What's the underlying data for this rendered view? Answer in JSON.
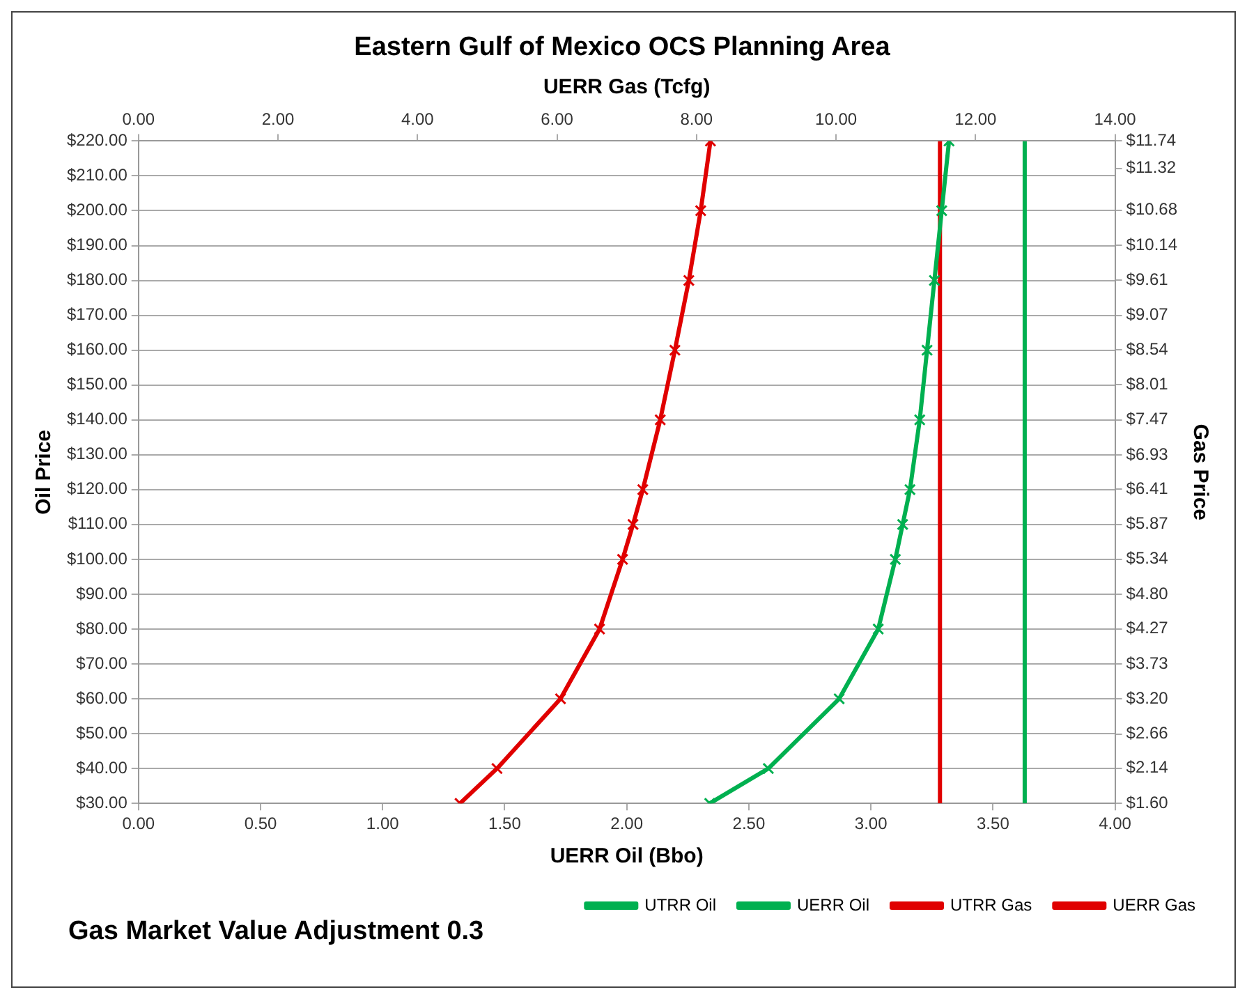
{
  "chart_data": {
    "type": "line",
    "title": "Eastern Gulf of Mexico OCS Planning Area",
    "xlabel": "UERR Oil (Bbo)",
    "x2label": "UERR Gas (Tcfg)",
    "ylabel": "Oil Price",
    "y2label": "Gas Price",
    "annotations": [
      "Gas Market Value Adjustment 0.3"
    ],
    "xlim": [
      0,
      4
    ],
    "xticks": [
      {
        "value": 0,
        "label": "0.00"
      },
      {
        "value": 0.5,
        "label": "0.50"
      },
      {
        "value": 1,
        "label": "1.00"
      },
      {
        "value": 1.5,
        "label": "1.50"
      },
      {
        "value": 2,
        "label": "2.00"
      },
      {
        "value": 2.5,
        "label": "2.50"
      },
      {
        "value": 3,
        "label": "3.00"
      },
      {
        "value": 3.5,
        "label": "3.50"
      },
      {
        "value": 4,
        "label": "4.00"
      }
    ],
    "x2lim": [
      0,
      14
    ],
    "x2ticks": [
      {
        "value": 0,
        "label": "0.00"
      },
      {
        "value": 2,
        "label": "2.00"
      },
      {
        "value": 4,
        "label": "4.00"
      },
      {
        "value": 6,
        "label": "6.00"
      },
      {
        "value": 8,
        "label": "8.00"
      },
      {
        "value": 10,
        "label": "10.00"
      },
      {
        "value": 12,
        "label": "12.00"
      },
      {
        "value": 14,
        "label": "14.00"
      }
    ],
    "ylim": [
      30,
      220
    ],
    "yticks": [
      {
        "value": 30,
        "label": "$30.00"
      },
      {
        "value": 40,
        "label": "$40.00"
      },
      {
        "value": 50,
        "label": "$50.00"
      },
      {
        "value": 60,
        "label": "$60.00"
      },
      {
        "value": 70,
        "label": "$70.00"
      },
      {
        "value": 80,
        "label": "$80.00"
      },
      {
        "value": 90,
        "label": "$90.00"
      },
      {
        "value": 100,
        "label": "$100.00"
      },
      {
        "value": 110,
        "label": "$110.00"
      },
      {
        "value": 120,
        "label": "$120.00"
      },
      {
        "value": 130,
        "label": "$130.00"
      },
      {
        "value": 140,
        "label": "$140.00"
      },
      {
        "value": 150,
        "label": "$150.00"
      },
      {
        "value": 160,
        "label": "$160.00"
      },
      {
        "value": 170,
        "label": "$170.00"
      },
      {
        "value": 180,
        "label": "$180.00"
      },
      {
        "value": 190,
        "label": "$190.00"
      },
      {
        "value": 200,
        "label": "$200.00"
      },
      {
        "value": 210,
        "label": "$210.00"
      },
      {
        "value": 220,
        "label": "$220.00"
      }
    ],
    "y2lim": [
      1.6,
      11.74
    ],
    "y2ticks": [
      {
        "value": 1.6,
        "label": "$1.60"
      },
      {
        "value": 2.14,
        "label": "$2.14"
      },
      {
        "value": 2.66,
        "label": "$2.66"
      },
      {
        "value": 3.2,
        "label": "$3.20"
      },
      {
        "value": 3.73,
        "label": "$3.73"
      },
      {
        "value": 4.27,
        "label": "$4.27"
      },
      {
        "value": 4.8,
        "label": "$4.80"
      },
      {
        "value": 5.34,
        "label": "$5.34"
      },
      {
        "value": 5.87,
        "label": "$5.87"
      },
      {
        "value": 6.41,
        "label": "$6.41"
      },
      {
        "value": 6.93,
        "label": "$6.93"
      },
      {
        "value": 7.47,
        "label": "$7.47"
      },
      {
        "value": 8.01,
        "label": "$8.01"
      },
      {
        "value": 8.54,
        "label": "$8.54"
      },
      {
        "value": 9.07,
        "label": "$9.07"
      },
      {
        "value": 9.61,
        "label": "$9.61"
      },
      {
        "value": 10.14,
        "label": "$10.14"
      },
      {
        "value": 10.68,
        "label": "$10.68"
      },
      {
        "value": 11.32,
        "label": "$11.32"
      },
      {
        "value": 11.74,
        "label": "$11.74"
      }
    ],
    "grid": "y",
    "legend": "bottom right",
    "series": [
      {
        "name": "UTRR Oil",
        "color": "#00b050",
        "marker": "none",
        "x": [
          3.63,
          3.63
        ],
        "values": [
          30,
          220
        ]
      },
      {
        "name": "UERR Oil",
        "color": "#00b050",
        "marker": "cross",
        "x": [
          2.34,
          2.58,
          2.87,
          3.03,
          3.1,
          3.13,
          3.16,
          3.2,
          3.23,
          3.26,
          3.29,
          3.32
        ],
        "values": [
          30,
          40,
          60,
          80,
          100,
          110,
          120,
          140,
          160,
          180,
          200,
          220
        ]
      },
      {
        "name": "UTRR Gas",
        "color": "#e00000",
        "marker": "none",
        "axis": "x2",
        "x": [
          11.49,
          11.49
        ],
        "values": [
          30,
          220
        ]
      },
      {
        "name": "UERR Gas",
        "color": "#e00000",
        "marker": "cross",
        "axis": "x2",
        "x": [
          4.61,
          5.14,
          6.05,
          6.61,
          6.94,
          7.09,
          7.23,
          7.48,
          7.69,
          7.89,
          8.06,
          8.2
        ],
        "values": [
          30,
          40,
          60,
          80,
          100,
          110,
          120,
          140,
          160,
          180,
          200,
          220
        ]
      }
    ]
  }
}
